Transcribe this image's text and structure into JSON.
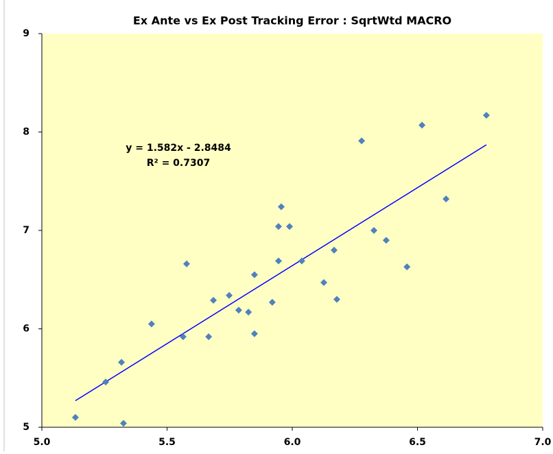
{
  "chart_data": {
    "type": "scatter",
    "title": "Ex Ante vs Ex Post Tracking Error : SqrtWtd MACRO",
    "annotations": [
      "y = 1.582x - 2.8484",
      "R² = 0.7307"
    ],
    "series": [
      {
        "name": "SqrtWtd MACRO",
        "color": "#4f81bd",
        "x": [
          5.134,
          5.255,
          5.318,
          5.326,
          5.438,
          5.564,
          5.578,
          5.666,
          5.685,
          5.748,
          5.786,
          5.825,
          5.849,
          5.849,
          5.92,
          5.945,
          5.945,
          5.956,
          5.989,
          6.038,
          6.126,
          6.167,
          6.178,
          6.277,
          6.326,
          6.375,
          6.458,
          6.518,
          6.614,
          6.775
        ],
        "values": [
          5.1,
          5.46,
          5.66,
          5.04,
          6.05,
          5.92,
          6.66,
          5.92,
          6.29,
          6.34,
          6.19,
          6.17,
          6.55,
          5.95,
          6.27,
          6.69,
          7.04,
          7.24,
          7.04,
          6.69,
          6.47,
          6.8,
          6.3,
          7.91,
          7.0,
          6.9,
          6.63,
          8.07,
          7.32,
          8.17
        ]
      }
    ],
    "trendline": {
      "color": "#0000ff",
      "x": [
        5.134,
        6.775
      ],
      "values": [
        5.27,
        7.87
      ]
    },
    "xlim": [
      5,
      7
    ],
    "xticks": [
      {
        "value": 5,
        "label": "5.0"
      },
      {
        "value": 5.5,
        "label": "5.5"
      },
      {
        "value": 6,
        "label": "6.0"
      },
      {
        "value": 6.5,
        "label": "6.5"
      },
      {
        "value": 7,
        "label": "7.0"
      }
    ],
    "ylim": [
      5,
      9
    ],
    "yticks": [
      5,
      6,
      7,
      8,
      9
    ],
    "plot_background": "#ffffc4",
    "grid": false
  }
}
